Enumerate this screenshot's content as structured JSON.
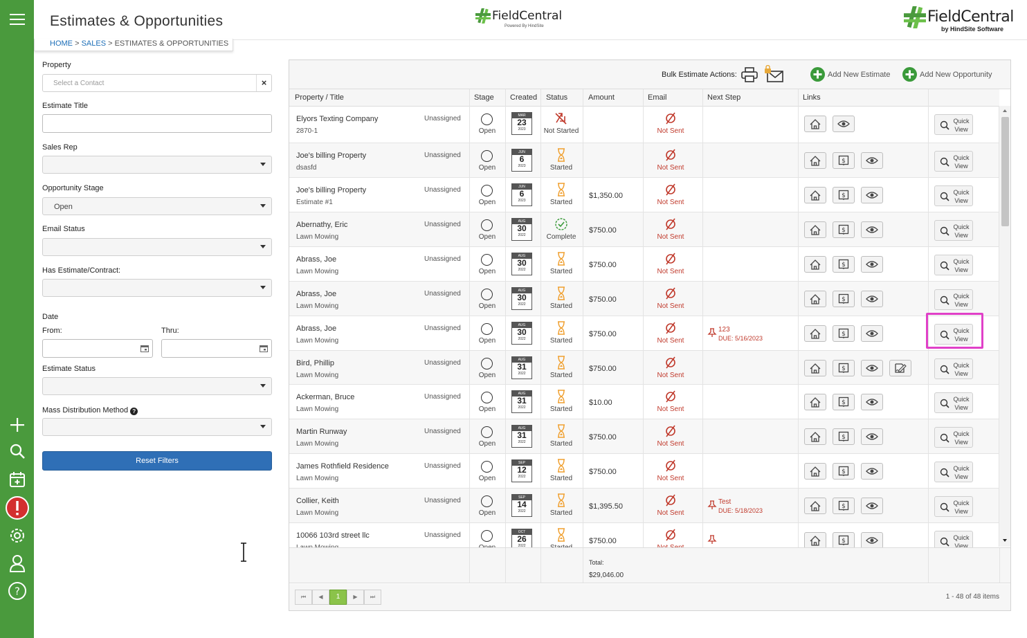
{
  "header": {
    "title": "Estimates & Opportunities",
    "center_logo": "FieldCentral",
    "center_logo_sub": "Powered By HindSite",
    "right_logo": "FieldCentral",
    "right_logo_sub": "by HindSite Software"
  },
  "breadcrumb": {
    "home": "HOME",
    "sales": "SALES",
    "current": "ESTIMATES & OPPORTUNITIES",
    "sep": ">"
  },
  "filters": {
    "property_label": "Property",
    "property_placeholder": "Select a Contact",
    "estimate_title_label": "Estimate Title",
    "sales_rep_label": "Sales Rep",
    "opportunity_stage_label": "Opportunity Stage",
    "opportunity_stage_value": "Open",
    "email_status_label": "Email Status",
    "has_estimate_label": "Has Estimate/Contract:",
    "date_label": "Date",
    "from_label": "From:",
    "thru_label": "Thru:",
    "estimate_status_label": "Estimate Status",
    "mass_dist_label": "Mass Distribution Method",
    "reset_label": "Reset Filters"
  },
  "toolbar": {
    "bulk_label": "Bulk Estimate Actions:",
    "add_estimate": "Add New Estimate",
    "add_opportunity": "Add New Opportunity"
  },
  "columns": [
    "Property / Title",
    "Stage",
    "Created",
    "Status",
    "Amount",
    "Email",
    "Next Step",
    "Links"
  ],
  "rows": [
    {
      "title": "Elyors Texting Company",
      "sub": "2870-1",
      "assign": "Unassigned",
      "stage": "Open",
      "cal_m": "MAR",
      "cal_d": "23",
      "cal_y": "2023",
      "status": "Not Started",
      "status_type": "not",
      "amount": "",
      "email": "Not Sent",
      "ns_title": "",
      "ns_due": "",
      "links": 2
    },
    {
      "title": "Joe's billing Property",
      "sub": "dsasfd",
      "assign": "Unassigned",
      "stage": "Open",
      "cal_m": "JUN",
      "cal_d": "6",
      "cal_y": "2023",
      "status": "Started",
      "status_type": "started",
      "amount": "",
      "email": "Not Sent",
      "ns_title": "",
      "ns_due": "",
      "links": 3
    },
    {
      "title": "Joe's billing Property",
      "sub": "Estimate #1",
      "assign": "Unassigned",
      "stage": "Open",
      "cal_m": "JUN",
      "cal_d": "6",
      "cal_y": "2023",
      "status": "Started",
      "status_type": "started",
      "amount": "$1,350.00",
      "email": "Not Sent",
      "ns_title": "",
      "ns_due": "",
      "links": 3
    },
    {
      "title": "Abernathy, Eric",
      "sub": "Lawn Mowing",
      "assign": "Unassigned",
      "stage": "Open",
      "cal_m": "AUG",
      "cal_d": "30",
      "cal_y": "2022",
      "status": "Complete",
      "status_type": "complete",
      "amount": "$750.00",
      "email": "Not Sent",
      "ns_title": "",
      "ns_due": "",
      "links": 3
    },
    {
      "title": "Abrass, Joe",
      "sub": "Lawn Mowing",
      "assign": "Unassigned",
      "stage": "Open",
      "cal_m": "AUG",
      "cal_d": "30",
      "cal_y": "2022",
      "status": "Started",
      "status_type": "started",
      "amount": "$750.00",
      "email": "Not Sent",
      "ns_title": "",
      "ns_due": "",
      "links": 3
    },
    {
      "title": "Abrass, Joe",
      "sub": "Lawn Mowing",
      "assign": "Unassigned",
      "stage": "Open",
      "cal_m": "AUG",
      "cal_d": "30",
      "cal_y": "2022",
      "status": "Started",
      "status_type": "started",
      "amount": "$750.00",
      "email": "Not Sent",
      "ns_title": "",
      "ns_due": "",
      "links": 3
    },
    {
      "title": "Abrass, Joe",
      "sub": "Lawn Mowing",
      "assign": "Unassigned",
      "stage": "Open",
      "cal_m": "AUG",
      "cal_d": "30",
      "cal_y": "2022",
      "status": "Started",
      "status_type": "started",
      "amount": "$750.00",
      "email": "Not Sent",
      "ns_title": "123",
      "ns_due": "DUE: 5/16/2023",
      "links": 3
    },
    {
      "title": "Bird, Phillip",
      "sub": "Lawn Mowing",
      "assign": "Unassigned",
      "stage": "Open",
      "cal_m": "AUG",
      "cal_d": "31",
      "cal_y": "2022",
      "status": "Started",
      "status_type": "started",
      "amount": "$750.00",
      "email": "Not Sent",
      "ns_title": "",
      "ns_due": "",
      "links": 4
    },
    {
      "title": "Ackerman, Bruce",
      "sub": "Lawn Mowing",
      "assign": "Unassigned",
      "stage": "Open",
      "cal_m": "AUG",
      "cal_d": "31",
      "cal_y": "2022",
      "status": "Started",
      "status_type": "started",
      "amount": "$10.00",
      "email": "Not Sent",
      "ns_title": "",
      "ns_due": "",
      "links": 3
    },
    {
      "title": "Martin Runway",
      "sub": "Lawn Mowing",
      "assign": "Unassigned",
      "stage": "Open",
      "cal_m": "AUG",
      "cal_d": "31",
      "cal_y": "2022",
      "status": "Started",
      "status_type": "started",
      "amount": "$750.00",
      "email": "Not Sent",
      "ns_title": "",
      "ns_due": "",
      "links": 3
    },
    {
      "title": "James Rothfield Residence",
      "sub": "Lawn Mowing",
      "assign": "Unassigned",
      "stage": "Open",
      "cal_m": "SEP",
      "cal_d": "12",
      "cal_y": "2022",
      "status": "Started",
      "status_type": "started",
      "amount": "$750.00",
      "email": "Not Sent",
      "ns_title": "",
      "ns_due": "",
      "links": 3
    },
    {
      "title": "Collier, Keith",
      "sub": "Lawn Mowing",
      "assign": "Unassigned",
      "stage": "Open",
      "cal_m": "SEP",
      "cal_d": "14",
      "cal_y": "2022",
      "status": "Started",
      "status_type": "started",
      "amount": "$1,395.50",
      "email": "Not Sent",
      "ns_title": "Test",
      "ns_due": "DUE: 5/18/2023",
      "links": 3
    },
    {
      "title": "10066 103rd street llc",
      "sub": "Lawn Mowing",
      "assign": "Unassigned",
      "stage": "Open",
      "cal_m": "OCT",
      "cal_d": "26",
      "cal_y": "2022",
      "status": "Started",
      "status_type": "started",
      "amount": "$750.00",
      "email": "Not Sent",
      "ns_title": "",
      "ns_due": "",
      "ns_pin": true,
      "links": 3
    }
  ],
  "quick_view": {
    "line1": "Quick",
    "line2": "View"
  },
  "footer": {
    "total_label": "Total:",
    "total_value": "$29,046.00"
  },
  "pager": {
    "current": "1",
    "summary": "1 - 48 of 48 items",
    "first": "⏮",
    "prev": "◀",
    "next": "▶",
    "last": "⏭"
  },
  "colors": {
    "green": "#4a9a3d",
    "blue": "#2f6fb6",
    "red": "#c0392b",
    "orange": "#f0a030",
    "magenta": "#e040c8"
  }
}
